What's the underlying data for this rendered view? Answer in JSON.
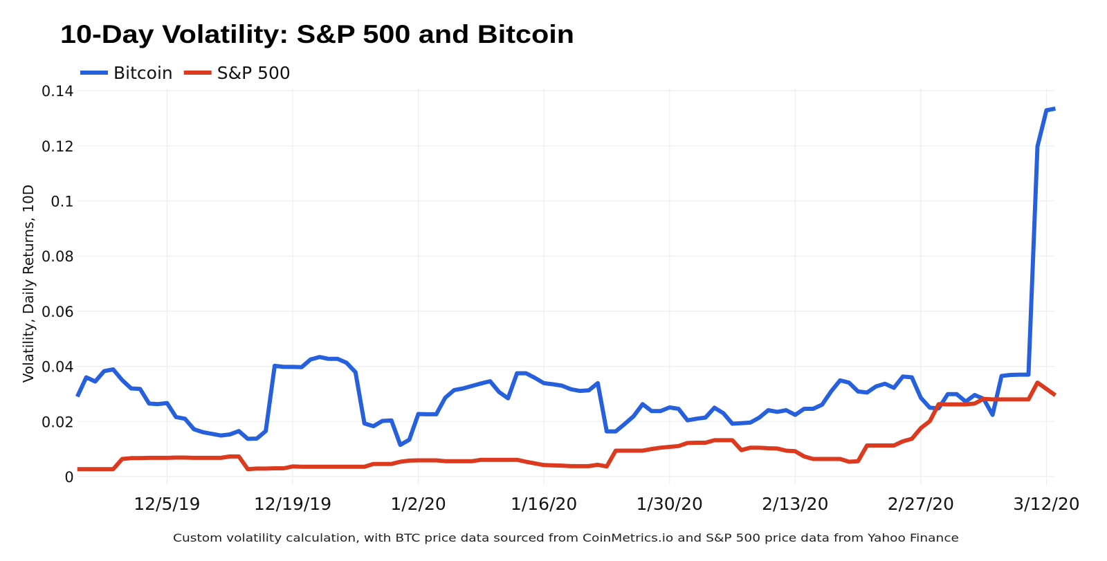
{
  "chart_data": {
    "type": "line",
    "title": "10-Day Volatility: S&P 500 and Bitcoin",
    "ylabel": "Volatility, Daily Returns, 10D",
    "xlabel": "",
    "caption": "Custom volatility calculation, with BTC price data sourced from CoinMetrics.io and S&P 500 price data from Yahoo Finance",
    "legend_position": "top-left",
    "grid": true,
    "ylim": [
      -0.003,
      0.141
    ],
    "xlim": [
      "2019-11-25",
      "2020-03-13"
    ],
    "y_ticks": [
      "0",
      "0.02",
      "0.04",
      "0.06",
      "0.08",
      "0.1",
      "0.12",
      "0.14"
    ],
    "y_tick_values": [
      0,
      0.02,
      0.04,
      0.06,
      0.08,
      0.1,
      0.12,
      0.14
    ],
    "x_ticks": [
      "12/5/19",
      "12/19/19",
      "1/2/20",
      "1/16/20",
      "1/30/20",
      "2/13/20",
      "2/27/20",
      "3/12/20"
    ],
    "x_tick_dates": [
      "2019-12-05",
      "2019-12-19",
      "2020-01-02",
      "2020-01-16",
      "2020-01-30",
      "2020-02-13",
      "2020-02-27",
      "2020-03-12"
    ],
    "x": [
      "2019-11-25",
      "2019-11-26",
      "2019-11-27",
      "2019-11-28",
      "2019-11-29",
      "2019-11-30",
      "2019-12-01",
      "2019-12-02",
      "2019-12-03",
      "2019-12-04",
      "2019-12-05",
      "2019-12-06",
      "2019-12-07",
      "2019-12-08",
      "2019-12-09",
      "2019-12-10",
      "2019-12-11",
      "2019-12-12",
      "2019-12-13",
      "2019-12-14",
      "2019-12-15",
      "2019-12-16",
      "2019-12-17",
      "2019-12-18",
      "2019-12-19",
      "2019-12-20",
      "2019-12-21",
      "2019-12-22",
      "2019-12-23",
      "2019-12-24",
      "2019-12-25",
      "2019-12-26",
      "2019-12-27",
      "2019-12-28",
      "2019-12-29",
      "2019-12-30",
      "2019-12-31",
      "2020-01-01",
      "2020-01-02",
      "2020-01-03",
      "2020-01-04",
      "2020-01-05",
      "2020-01-06",
      "2020-01-07",
      "2020-01-08",
      "2020-01-09",
      "2020-01-10",
      "2020-01-11",
      "2020-01-12",
      "2020-01-13",
      "2020-01-14",
      "2020-01-15",
      "2020-01-16",
      "2020-01-17",
      "2020-01-18",
      "2020-01-19",
      "2020-01-20",
      "2020-01-21",
      "2020-01-22",
      "2020-01-23",
      "2020-01-24",
      "2020-01-25",
      "2020-01-26",
      "2020-01-27",
      "2020-01-28",
      "2020-01-29",
      "2020-01-30",
      "2020-01-31",
      "2020-02-01",
      "2020-02-02",
      "2020-02-03",
      "2020-02-04",
      "2020-02-05",
      "2020-02-06",
      "2020-02-07",
      "2020-02-08",
      "2020-02-09",
      "2020-02-10",
      "2020-02-11",
      "2020-02-12",
      "2020-02-13",
      "2020-02-14",
      "2020-02-15",
      "2020-02-16",
      "2020-02-17",
      "2020-02-18",
      "2020-02-19",
      "2020-02-20",
      "2020-02-21",
      "2020-02-22",
      "2020-02-23",
      "2020-02-24",
      "2020-02-25",
      "2020-02-26",
      "2020-02-27",
      "2020-02-28",
      "2020-02-29",
      "2020-03-01",
      "2020-03-02",
      "2020-03-03",
      "2020-03-04",
      "2020-03-05",
      "2020-03-06",
      "2020-03-07",
      "2020-03-08",
      "2020-03-09",
      "2020-03-10",
      "2020-03-11",
      "2020-03-12",
      "2020-03-13"
    ],
    "series": [
      {
        "name": "Bitcoin",
        "color": "#2760dc",
        "values": [
          0.029,
          0.036,
          0.0345,
          0.0383,
          0.0389,
          0.035,
          0.032,
          0.0318,
          0.0265,
          0.0263,
          0.0267,
          0.0216,
          0.021,
          0.0172,
          0.0161,
          0.0155,
          0.0149,
          0.0153,
          0.0165,
          0.0137,
          0.0138,
          0.0165,
          0.0402,
          0.0398,
          0.0398,
          0.0397,
          0.0425,
          0.0434,
          0.0427,
          0.0427,
          0.0413,
          0.0379,
          0.0193,
          0.0183,
          0.0202,
          0.0204,
          0.0115,
          0.0134,
          0.0227,
          0.0226,
          0.0226,
          0.0286,
          0.0314,
          0.032,
          0.0329,
          0.0338,
          0.0346,
          0.0307,
          0.0284,
          0.0375,
          0.0375,
          0.0358,
          0.0339,
          0.0335,
          0.033,
          0.0317,
          0.0311,
          0.0313,
          0.0339,
          0.0164,
          0.0164,
          0.0191,
          0.0219,
          0.0263,
          0.0238,
          0.0238,
          0.0251,
          0.0246,
          0.0204,
          0.021,
          0.0214,
          0.025,
          0.023,
          0.0192,
          0.0194,
          0.0196,
          0.0214,
          0.0241,
          0.0235,
          0.0241,
          0.0224,
          0.0246,
          0.0246,
          0.0261,
          0.0309,
          0.0349,
          0.0341,
          0.0309,
          0.0305,
          0.0327,
          0.0337,
          0.0322,
          0.0363,
          0.036,
          0.0286,
          0.025,
          0.0248,
          0.0299,
          0.0299,
          0.0272,
          0.0296,
          0.0282,
          0.0224,
          0.0365,
          0.0369,
          0.037,
          0.037,
          0.1198,
          0.1329,
          0.1335
        ]
      },
      {
        "name": "S&P 500",
        "color": "#dc3a1f",
        "values": [
          0.0027,
          0.0027,
          0.0027,
          0.0027,
          0.0027,
          0.0064,
          0.0067,
          0.0067,
          0.0068,
          0.0068,
          0.0068,
          0.0069,
          0.0069,
          0.0068,
          0.0068,
          0.0068,
          0.0068,
          0.0073,
          0.0073,
          0.0027,
          0.0029,
          0.0029,
          0.003,
          0.003,
          0.0037,
          0.0036,
          0.0036,
          0.0036,
          0.0036,
          0.0036,
          0.0036,
          0.0036,
          0.0036,
          0.0046,
          0.0046,
          0.0046,
          0.0054,
          0.0058,
          0.0059,
          0.0059,
          0.0059,
          0.0056,
          0.0056,
          0.0056,
          0.0056,
          0.0061,
          0.0061,
          0.0061,
          0.0061,
          0.0061,
          0.0054,
          0.0048,
          0.0042,
          0.0041,
          0.004,
          0.0038,
          0.0038,
          0.0038,
          0.0043,
          0.0037,
          0.0094,
          0.0094,
          0.0094,
          0.0094,
          0.01,
          0.0105,
          0.0108,
          0.0111,
          0.0122,
          0.0123,
          0.0123,
          0.0132,
          0.0132,
          0.0132,
          0.0096,
          0.0105,
          0.0105,
          0.0103,
          0.0102,
          0.0094,
          0.0092,
          0.0073,
          0.0064,
          0.0064,
          0.0064,
          0.0064,
          0.0054,
          0.0056,
          0.0113,
          0.0113,
          0.0113,
          0.0113,
          0.0128,
          0.0137,
          0.0176,
          0.0201,
          0.0263,
          0.0262,
          0.0262,
          0.0262,
          0.0265,
          0.0282,
          0.028,
          0.028,
          0.028,
          0.028,
          0.028,
          0.0341,
          0.0318,
          0.0295
        ]
      }
    ]
  }
}
